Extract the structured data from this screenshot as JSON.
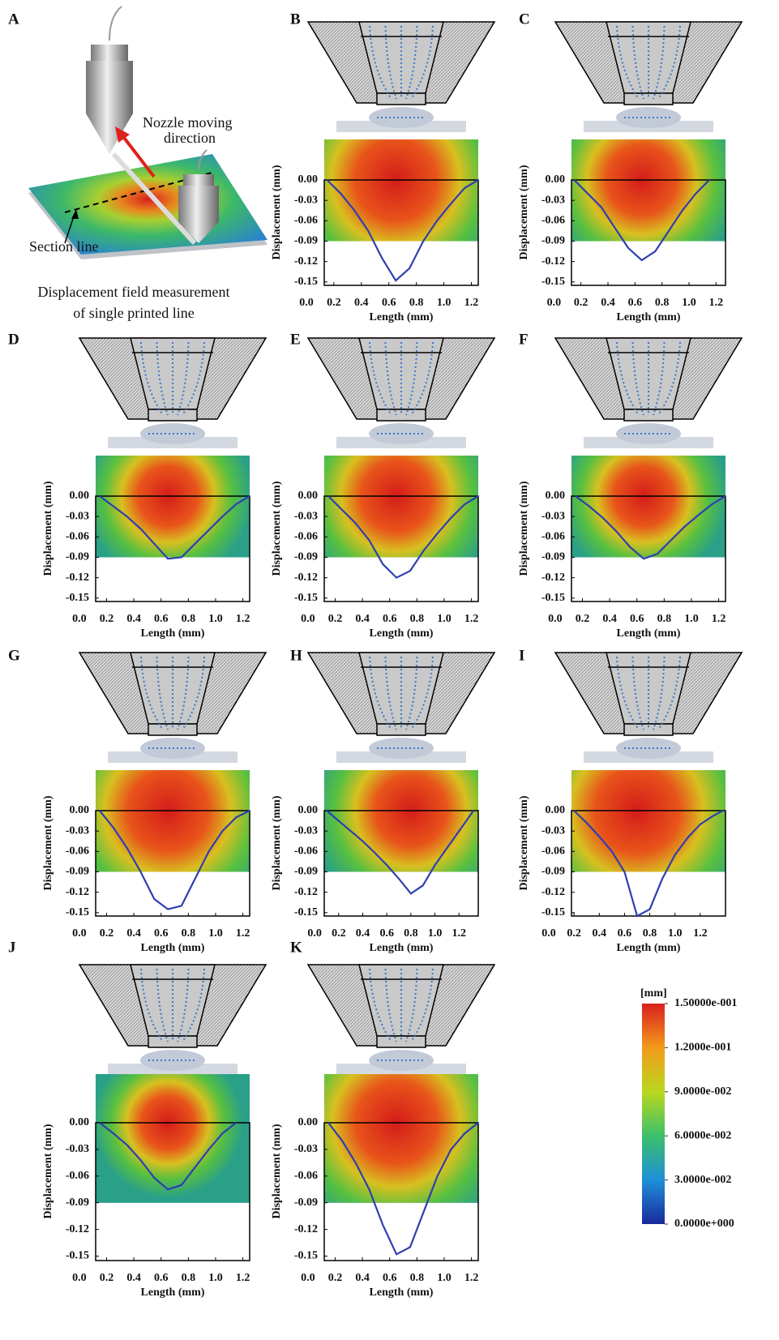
{
  "panel_a": {
    "label": "A",
    "annotations": [
      "Nozzle moving",
      "direction",
      "Section line"
    ],
    "caption": [
      "Displacement field measurement",
      "of single printed line"
    ]
  },
  "chart_data": [
    {
      "type": "line",
      "panel": "B",
      "xlabel": "Length (mm)",
      "ylabel": "Displacement (mm)",
      "color": "#2e3fb0",
      "x": [
        0.15,
        0.25,
        0.35,
        0.45,
        0.55,
        0.65,
        0.75,
        0.85,
        0.95,
        1.05,
        1.15,
        1.25
      ],
      "values": [
        0,
        -0.02,
        -0.045,
        -0.075,
        -0.115,
        -0.148,
        -0.13,
        -0.09,
        -0.06,
        -0.035,
        -0.012,
        0
      ],
      "xlim": [
        0.13,
        1.25
      ],
      "ylim": [
        -0.155,
        0
      ],
      "xticks": [
        {
          "value": 0,
          "label": "0.0"
        },
        0.2,
        0.4,
        0.6,
        0.8,
        {
          "value": 1,
          "label": "1.0"
        },
        1.2
      ],
      "yticks": [
        {
          "value": 0,
          "label": "0.00"
        },
        -0.03,
        -0.06,
        -0.09,
        -0.12,
        -0.15
      ]
    },
    {
      "type": "line",
      "panel": "C",
      "xlabel": "Length (mm)",
      "ylabel": "Displacement (mm)",
      "color": "#2e3fb0",
      "x": [
        0.15,
        0.25,
        0.35,
        0.45,
        0.55,
        0.65,
        0.75,
        0.85,
        0.95,
        1.05,
        1.15
      ],
      "values": [
        0,
        -0.02,
        -0.04,
        -0.07,
        -0.1,
        -0.118,
        -0.105,
        -0.075,
        -0.045,
        -0.02,
        0
      ],
      "xlim": [
        0.13,
        1.27
      ],
      "ylim": [
        -0.155,
        0
      ],
      "xticks": [
        {
          "value": 0,
          "label": "0.0"
        },
        0.2,
        0.4,
        0.6,
        0.8,
        {
          "value": 1,
          "label": "1.0"
        },
        1.2
      ],
      "yticks": [
        {
          "value": 0,
          "label": "0.00"
        },
        -0.03,
        -0.06,
        -0.09,
        -0.12,
        -0.15
      ]
    },
    {
      "type": "line",
      "panel": "D",
      "xlabel": "Length (mm)",
      "ylabel": "Displacement (mm)",
      "color": "#2e3fb0",
      "x": [
        0.15,
        0.25,
        0.35,
        0.45,
        0.55,
        0.65,
        0.75,
        0.85,
        0.95,
        1.05,
        1.15,
        1.25
      ],
      "values": [
        0,
        -0.015,
        -0.03,
        -0.048,
        -0.07,
        -0.092,
        -0.09,
        -0.07,
        -0.05,
        -0.03,
        -0.012,
        0
      ],
      "xlim": [
        0.12,
        1.25
      ],
      "ylim": [
        -0.155,
        0
      ],
      "xticks": [
        {
          "value": 0,
          "label": "0.0"
        },
        0.2,
        0.4,
        0.6,
        0.8,
        {
          "value": 1,
          "label": "1.0"
        },
        1.2
      ],
      "yticks": [
        {
          "value": 0,
          "label": "0.00"
        },
        -0.03,
        -0.06,
        -0.09,
        -0.12,
        -0.15
      ]
    },
    {
      "type": "line",
      "panel": "E",
      "xlabel": "Length (mm)",
      "ylabel": "Displacement (mm)",
      "color": "#2e3fb0",
      "x": [
        0.15,
        0.25,
        0.35,
        0.45,
        0.55,
        0.65,
        0.75,
        0.85,
        0.95,
        1.05,
        1.15,
        1.25
      ],
      "values": [
        0,
        -0.02,
        -0.04,
        -0.065,
        -0.1,
        -0.12,
        -0.11,
        -0.08,
        -0.055,
        -0.032,
        -0.012,
        0
      ],
      "xlim": [
        0.12,
        1.25
      ],
      "ylim": [
        -0.155,
        0
      ],
      "xticks": [
        {
          "value": 0,
          "label": "0.0"
        },
        0.2,
        0.4,
        0.6,
        0.8,
        {
          "value": 1,
          "label": "1.0"
        },
        1.2
      ],
      "yticks": [
        {
          "value": 0,
          "label": "0.00"
        },
        -0.03,
        -0.06,
        -0.09,
        -0.12,
        -0.15
      ]
    },
    {
      "type": "line",
      "panel": "F",
      "xlabel": "Length (mm)",
      "ylabel": "Displacement (mm)",
      "color": "#2e3fb0",
      "x": [
        0.15,
        0.25,
        0.35,
        0.45,
        0.55,
        0.65,
        0.75,
        0.85,
        0.95,
        1.05,
        1.15,
        1.25
      ],
      "values": [
        0,
        -0.015,
        -0.032,
        -0.052,
        -0.075,
        -0.092,
        -0.085,
        -0.065,
        -0.045,
        -0.028,
        -0.012,
        0
      ],
      "xlim": [
        0.12,
        1.25
      ],
      "ylim": [
        -0.155,
        0
      ],
      "xticks": [
        {
          "value": 0,
          "label": "0.0"
        },
        0.2,
        0.4,
        0.6,
        0.8,
        {
          "value": 1,
          "label": "1.0"
        },
        1.2
      ],
      "yticks": [
        {
          "value": 0,
          "label": "0.00"
        },
        -0.03,
        -0.06,
        -0.09,
        -0.12,
        -0.15
      ]
    },
    {
      "type": "line",
      "panel": "G",
      "xlabel": "Length (mm)",
      "ylabel": "Displacement (mm)",
      "color": "#2e3fb0",
      "x": [
        0.15,
        0.25,
        0.35,
        0.45,
        0.55,
        0.65,
        0.75,
        0.85,
        0.95,
        1.05,
        1.15,
        1.25
      ],
      "values": [
        0,
        -0.025,
        -0.055,
        -0.09,
        -0.13,
        -0.145,
        -0.14,
        -0.1,
        -0.06,
        -0.03,
        -0.01,
        0
      ],
      "xlim": [
        0.12,
        1.25
      ],
      "ylim": [
        -0.155,
        0
      ],
      "xticks": [
        {
          "value": 0,
          "label": "0.0"
        },
        0.2,
        0.4,
        0.6,
        0.8,
        {
          "value": 1,
          "label": "1.0"
        },
        1.2
      ],
      "yticks": [
        {
          "value": 0,
          "label": "0.00"
        },
        -0.03,
        -0.06,
        -0.09,
        -0.12,
        -0.15
      ]
    },
    {
      "type": "line",
      "panel": "H",
      "xlabel": "Length (mm)",
      "ylabel": "Displacement (mm)",
      "color": "#2e3fb0",
      "x": [
        0.1,
        0.2,
        0.3,
        0.4,
        0.5,
        0.6,
        0.7,
        0.8,
        0.9,
        1.0,
        1.1,
        1.2,
        1.32
      ],
      "values": [
        0,
        -0.015,
        -0.03,
        -0.045,
        -0.062,
        -0.08,
        -0.1,
        -0.122,
        -0.11,
        -0.08,
        -0.055,
        -0.03,
        0
      ],
      "xlim": [
        0.08,
        1.36
      ],
      "ylim": [
        -0.155,
        0
      ],
      "xticks": [
        {
          "value": 0,
          "label": "0.0"
        },
        0.2,
        0.4,
        0.6,
        0.8,
        {
          "value": 1,
          "label": "1.0"
        },
        1.2
      ],
      "yticks": [
        {
          "value": 0,
          "label": "0.00"
        },
        -0.03,
        -0.06,
        -0.09,
        -0.12,
        -0.15
      ]
    },
    {
      "type": "line",
      "panel": "I",
      "xlabel": "Length (mm)",
      "ylabel": "Displacement (mm)",
      "color": "#2e3fb0",
      "x": [
        0.2,
        0.3,
        0.4,
        0.5,
        0.6,
        0.7,
        0.8,
        0.9,
        1.0,
        1.1,
        1.2,
        1.3,
        1.38
      ],
      "values": [
        0,
        -0.018,
        -0.038,
        -0.06,
        -0.09,
        -0.155,
        -0.145,
        -0.1,
        -0.065,
        -0.04,
        -0.02,
        -0.008,
        0
      ],
      "xlim": [
        0.18,
        1.4
      ],
      "ylim": [
        -0.155,
        0
      ],
      "xticks": [
        {
          "value": 0,
          "label": "0.0"
        },
        0.2,
        0.4,
        0.6,
        0.8,
        {
          "value": 1,
          "label": "1.0"
        },
        1.2
      ],
      "yticks": [
        {
          "value": 0,
          "label": "0.00"
        },
        -0.03,
        -0.06,
        -0.09,
        -0.12,
        -0.15
      ]
    },
    {
      "type": "line",
      "panel": "J",
      "xlabel": "Length (mm)",
      "ylabel": "Displacement (mm)",
      "color": "#2e3fb0",
      "x": [
        0.15,
        0.25,
        0.35,
        0.45,
        0.55,
        0.65,
        0.75,
        0.85,
        0.95,
        1.05,
        1.15
      ],
      "values": [
        0,
        -0.012,
        -0.025,
        -0.042,
        -0.062,
        -0.075,
        -0.07,
        -0.05,
        -0.03,
        -0.012,
        0
      ],
      "xlim": [
        0.12,
        1.25
      ],
      "ylim": [
        -0.155,
        0
      ],
      "xticks": [
        {
          "value": 0,
          "label": "0.0"
        },
        0.2,
        0.4,
        0.6,
        0.8,
        {
          "value": 1,
          "label": "1.0"
        },
        1.2
      ],
      "yticks": [
        {
          "value": 0,
          "label": "0.00"
        },
        -0.03,
        -0.06,
        -0.09,
        -0.12,
        -0.15
      ]
    },
    {
      "type": "line",
      "panel": "K",
      "xlabel": "Length (mm)",
      "ylabel": "Displacement (mm)",
      "color": "#2e3fb0",
      "x": [
        0.15,
        0.25,
        0.35,
        0.45,
        0.55,
        0.65,
        0.75,
        0.85,
        0.95,
        1.05,
        1.15,
        1.25
      ],
      "values": [
        0,
        -0.02,
        -0.045,
        -0.075,
        -0.115,
        -0.148,
        -0.14,
        -0.1,
        -0.06,
        -0.03,
        -0.012,
        0
      ],
      "xlim": [
        0.12,
        1.25
      ],
      "ylim": [
        -0.155,
        0
      ],
      "xticks": [
        {
          "value": 0,
          "label": "0.0"
        },
        0.2,
        0.4,
        0.6,
        0.8,
        {
          "value": 1,
          "label": "1.0"
        },
        1.2
      ],
      "yticks": [
        {
          "value": 0,
          "label": "0.00"
        },
        -0.03,
        -0.06,
        -0.09,
        -0.12,
        -0.15
      ]
    }
  ],
  "colorbar": {
    "title": "[mm]",
    "lim": [
      0,
      0.15
    ],
    "ticks": [
      {
        "value": 0.15,
        "label": "1.50000e-001"
      },
      {
        "value": 0.12,
        "label": "1.2000e-001"
      },
      {
        "value": 0.09,
        "label": "9.0000e-002"
      },
      {
        "value": 0.06,
        "label": "6.0000e-002"
      },
      {
        "value": 0.03,
        "label": "3.0000e-002"
      },
      {
        "value": 0,
        "label": "0.0000e+000"
      }
    ]
  }
}
